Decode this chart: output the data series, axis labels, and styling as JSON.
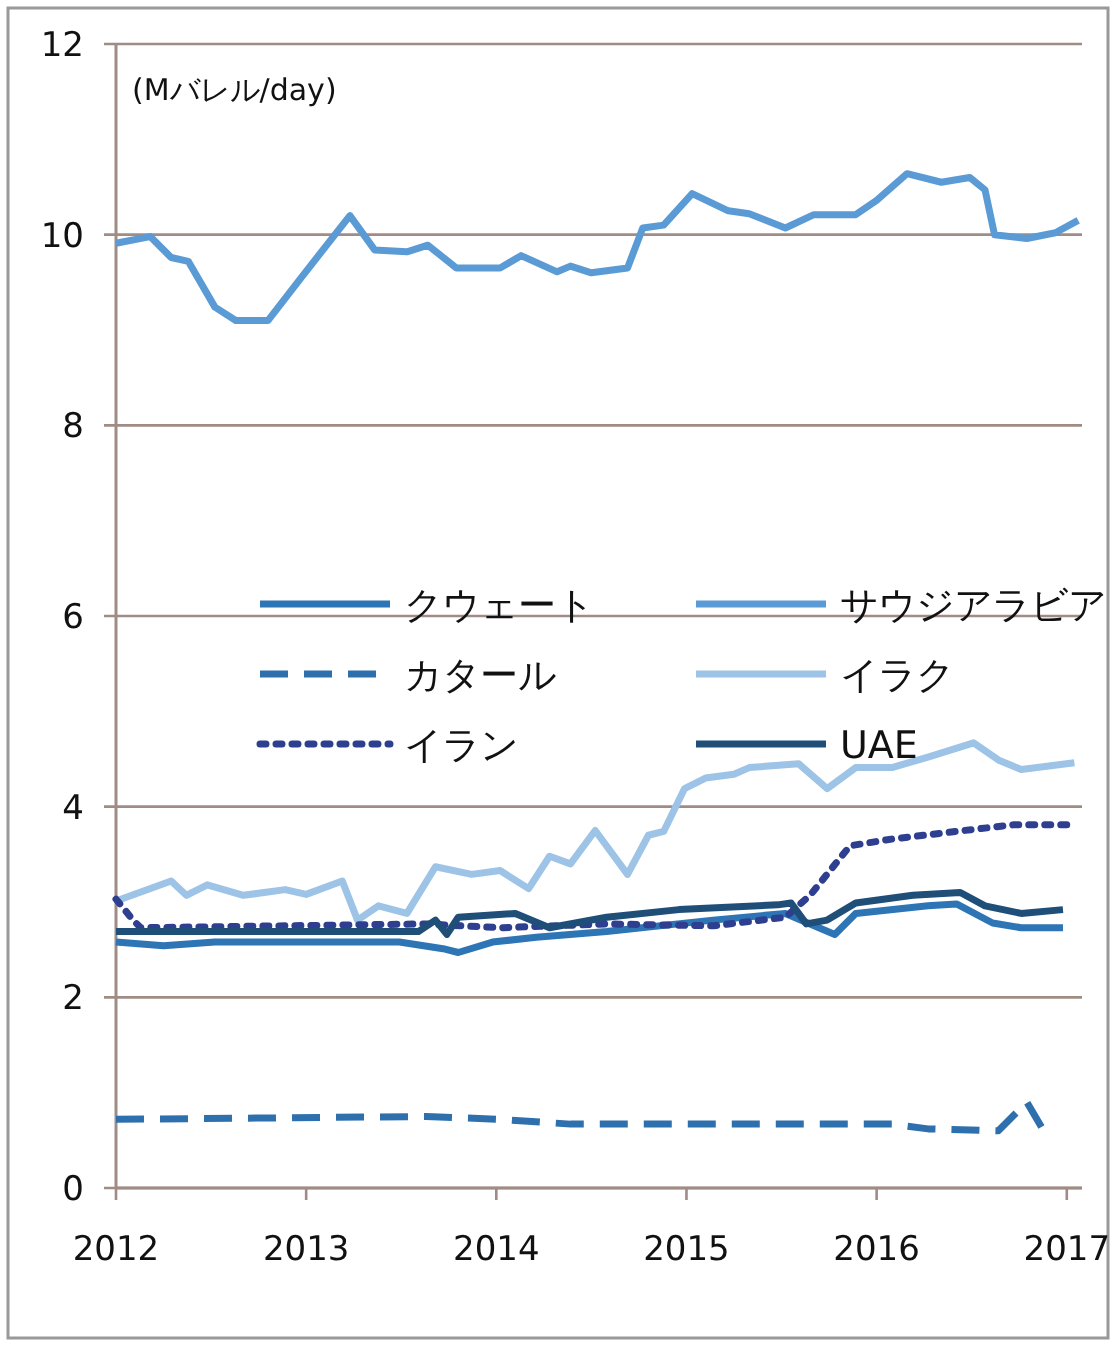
{
  "chart_data": {
    "type": "line",
    "ylabel": "(Mバレル/day)",
    "xlim": [
      2012,
      2017.08
    ],
    "xticks": [
      2012,
      2013,
      2014,
      2015,
      2016,
      2017
    ],
    "ylim": [
      0,
      12
    ],
    "yticks": [
      0,
      2,
      4,
      6,
      8,
      10,
      12
    ],
    "grid": "y",
    "legend": "center",
    "marker": "none",
    "series": [
      {
        "name": "クウェート",
        "color": "#2e75b6",
        "line_style": "solid",
        "x": [
          2012.0,
          2012.25,
          2012.52,
          2013.49,
          2013.72,
          2013.8,
          2013.98,
          2014.21,
          2014.58,
          2015.14,
          2015.52,
          2015.78,
          2015.89,
          2016.27,
          2016.42,
          2016.61,
          2016.76,
          2016.98
        ],
        "values": [
          2.58,
          2.54,
          2.58,
          2.58,
          2.51,
          2.47,
          2.58,
          2.63,
          2.69,
          2.81,
          2.88,
          2.66,
          2.88,
          2.96,
          2.98,
          2.78,
          2.73,
          2.73
        ]
      },
      {
        "name": "サウジアラビア",
        "color": "#5b9bd5",
        "line_style": "solid",
        "x": [
          2012.0,
          2012.18,
          2012.29,
          2012.38,
          2012.52,
          2012.63,
          2012.8,
          2012.97,
          2013.23,
          2013.36,
          2013.53,
          2013.64,
          2013.79,
          2014.02,
          2014.13,
          2014.32,
          2014.39,
          2014.5,
          2014.69,
          2014.77,
          2014.88,
          2015.03,
          2015.22,
          2015.33,
          2015.52,
          2015.67,
          2015.89,
          2016.0,
          2016.16,
          2016.34,
          2016.49,
          2016.57,
          2016.62,
          2016.79,
          2016.94,
          2017.06
        ],
        "values": [
          9.91,
          9.98,
          9.76,
          9.72,
          9.24,
          9.1,
          9.1,
          9.54,
          10.2,
          9.84,
          9.82,
          9.89,
          9.65,
          9.65,
          9.78,
          9.61,
          9.67,
          9.6,
          9.65,
          10.07,
          10.1,
          10.43,
          10.25,
          10.22,
          10.07,
          10.21,
          10.21,
          10.36,
          10.64,
          10.55,
          10.6,
          10.47,
          10.0,
          9.96,
          10.02,
          10.15
        ]
      },
      {
        "name": "カタール",
        "color": "#2e6fad",
        "line_style": "dashed",
        "x": [
          2012.0,
          2013.63,
          2014.02,
          2014.39,
          2016.08,
          2016.27,
          2016.64,
          2016.79,
          2016.87
        ],
        "values": [
          0.72,
          0.75,
          0.72,
          0.67,
          0.67,
          0.62,
          0.6,
          0.9,
          0.63
        ]
      },
      {
        "name": "イラク",
        "color": "#9dc3e6",
        "line_style": "solid",
        "x": [
          2012.0,
          2012.29,
          2012.37,
          2012.48,
          2012.67,
          2012.89,
          2013.0,
          2013.19,
          2013.27,
          2013.38,
          2013.53,
          2013.68,
          2013.87,
          2014.02,
          2014.17,
          2014.28,
          2014.39,
          2014.52,
          2014.69,
          2014.8,
          2014.88,
          2014.99,
          2015.1,
          2015.25,
          2015.33,
          2015.59,
          2015.74,
          2015.89,
          2016.08,
          2016.27,
          2016.51,
          2016.64,
          2016.76,
          2017.04
        ],
        "values": [
          3.01,
          3.22,
          3.07,
          3.18,
          3.07,
          3.13,
          3.08,
          3.22,
          2.81,
          2.96,
          2.88,
          3.37,
          3.29,
          3.33,
          3.14,
          3.48,
          3.4,
          3.75,
          3.29,
          3.7,
          3.74,
          4.19,
          4.3,
          4.34,
          4.41,
          4.45,
          4.19,
          4.41,
          4.41,
          4.52,
          4.67,
          4.49,
          4.39,
          4.46
        ]
      },
      {
        "name": "イラン",
        "color": "#2f3f8f",
        "line_style": "dotted",
        "x": [
          2012.0,
          2012.09,
          2012.13,
          2013.63,
          2014.02,
          2014.58,
          2015.14,
          2015.52,
          2015.65,
          2015.86,
          2016.08,
          2016.46,
          2016.72,
          2017.04
        ],
        "values": [
          3.03,
          2.81,
          2.73,
          2.77,
          2.73,
          2.77,
          2.75,
          2.84,
          3.07,
          3.59,
          3.66,
          3.75,
          3.81,
          3.81
        ]
      },
      {
        "name": "UAE",
        "color": "#1f4e79",
        "line_style": "solid",
        "x": [
          2012.0,
          2013.59,
          2013.68,
          2013.74,
          2013.8,
          2014.1,
          2014.28,
          2014.58,
          2014.96,
          2015.48,
          2015.55,
          2015.63,
          2015.74,
          2015.89,
          2016.19,
          2016.44,
          2016.57,
          2016.76,
          2016.98
        ],
        "values": [
          2.69,
          2.69,
          2.81,
          2.66,
          2.84,
          2.88,
          2.73,
          2.84,
          2.92,
          2.97,
          2.99,
          2.77,
          2.81,
          2.99,
          3.07,
          3.1,
          2.96,
          2.88,
          2.92
        ]
      }
    ]
  }
}
